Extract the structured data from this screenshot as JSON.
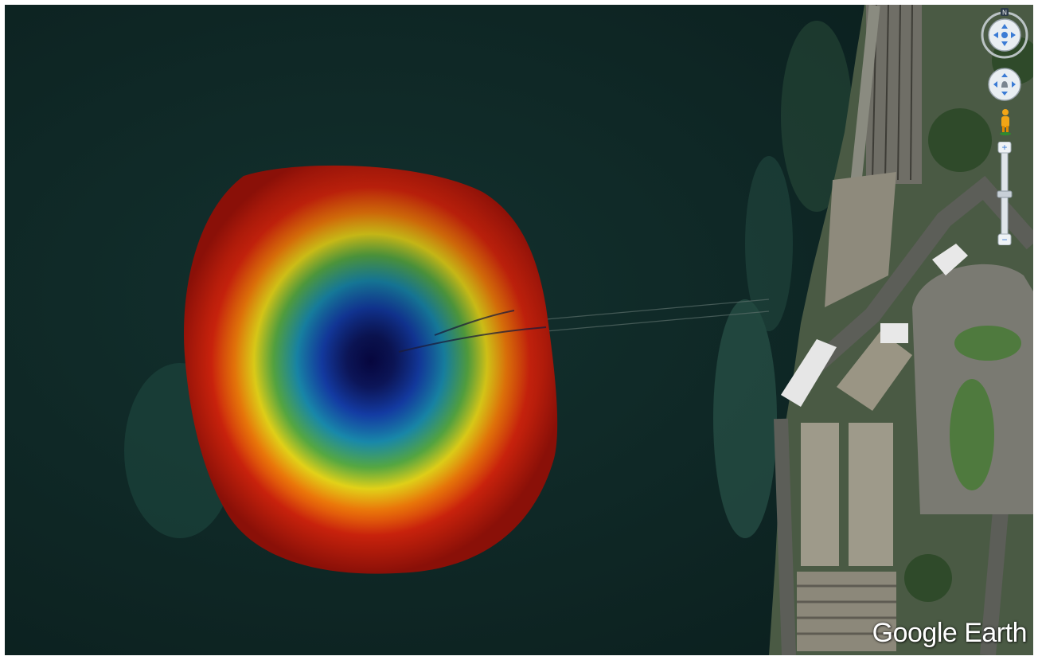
{
  "branding": {
    "logo_text": "Google Earth"
  },
  "navigation": {
    "compass_north_label": "N",
    "zoom_in_symbol": "+",
    "zoom_out_symbol": "−",
    "icons": [
      "compass-icon",
      "look-joystick-icon",
      "pegman-icon",
      "zoom-slider-icon"
    ]
  },
  "overlay": {
    "type": "bathymetry-heatmap",
    "colors": [
      "#8a1008",
      "#c8220c",
      "#f07a0a",
      "#f4e21a",
      "#62c04a",
      "#1ea8d0",
      "#1a4fd8",
      "#0a0a5c"
    ]
  },
  "colors": {
    "sea": "#0f2826",
    "land": "#4a5a44",
    "building_roof": "#9e9a8a"
  }
}
